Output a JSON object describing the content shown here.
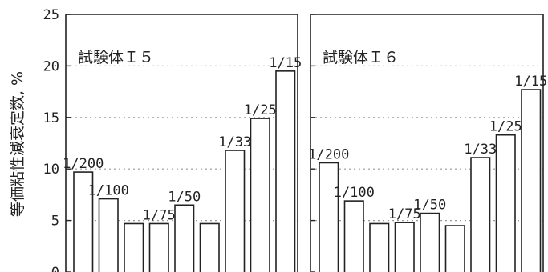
{
  "chart_data": {
    "type": "bar",
    "ylabel": "等価粘性減衰定数, %",
    "ylim": [
      0,
      25
    ],
    "yticks": [
      0,
      5,
      10,
      15,
      20,
      25
    ],
    "grid": "dotted horizontal",
    "colors": {
      "bar_fill": "#ffffff",
      "bar_stroke": "#222222",
      "grid": "#999999"
    },
    "panels": [
      {
        "title": "試験体Ｉ５",
        "values": [
          9.7,
          7.1,
          4.7,
          4.7,
          6.5,
          4.7,
          11.8,
          14.9,
          19.5
        ],
        "labels": [
          "1/200",
          "1/100",
          "",
          "1/75",
          "1/50",
          "",
          "1/33",
          "1/25",
          "1/15"
        ]
      },
      {
        "title": "試験体Ｉ６",
        "values": [
          10.6,
          6.9,
          4.7,
          4.8,
          5.7,
          4.5,
          11.1,
          13.3,
          17.7
        ],
        "labels": [
          "1/200",
          "1/100",
          "",
          "1/75",
          "1/50",
          "",
          "1/33",
          "1/25",
          "1/15"
        ]
      }
    ]
  }
}
